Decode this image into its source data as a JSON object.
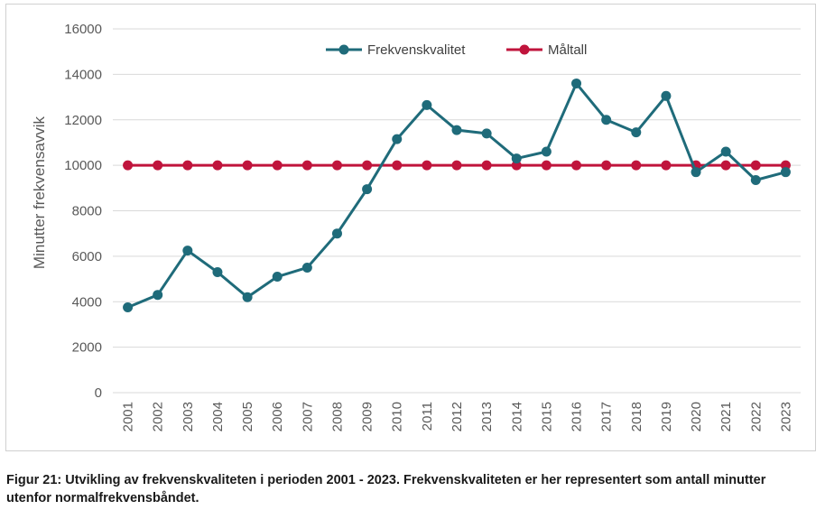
{
  "caption": "Figur 21: Utvikling av frekvenskvaliteten i perioden 2001 - 2023. Frekvenskvaliteten er her representert som antall minutter utenfor normalfrekvensbåndet.",
  "chart_data": {
    "type": "line",
    "title": "",
    "xlabel": "",
    "ylabel": "Minutter frekvensavvik",
    "ylim": [
      0,
      16000
    ],
    "yticks": [
      0,
      2000,
      4000,
      6000,
      8000,
      10000,
      12000,
      14000,
      16000
    ],
    "grid": true,
    "legend_position": "top-center",
    "categories": [
      "2001",
      "2002",
      "2003",
      "2004",
      "2005",
      "2006",
      "2007",
      "2008",
      "2009",
      "2010",
      "2011",
      "2012",
      "2013",
      "2014",
      "2015",
      "2016",
      "2017",
      "2018",
      "2019",
      "2020",
      "2021",
      "2022",
      "2023"
    ],
    "series": [
      {
        "name": "Frekvenskvalitet",
        "color": "#1f6b7a",
        "values": [
          3750,
          4300,
          6250,
          5300,
          4200,
          5100,
          5500,
          7000,
          8950,
          11150,
          12650,
          11550,
          11400,
          10300,
          10600,
          13600,
          12000,
          11450,
          13050,
          9700,
          10600,
          9350,
          9700
        ]
      },
      {
        "name": "Måltall",
        "color": "#c0143c",
        "values": [
          10000,
          10000,
          10000,
          10000,
          10000,
          10000,
          10000,
          10000,
          10000,
          10000,
          10000,
          10000,
          10000,
          10000,
          10000,
          10000,
          10000,
          10000,
          10000,
          10000,
          10000,
          10000,
          10000
        ]
      }
    ]
  }
}
